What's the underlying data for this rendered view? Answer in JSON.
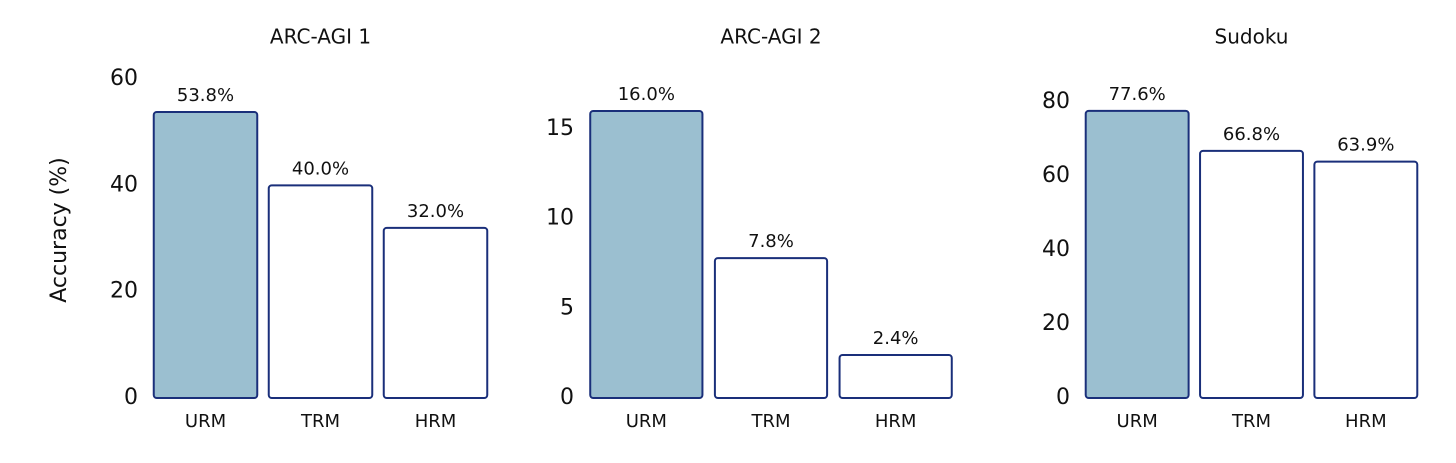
{
  "chart_data": [
    {
      "type": "bar",
      "title": "ARC-AGI 1",
      "ylabel": "Accuracy (%)",
      "categories": [
        "URM",
        "TRM",
        "HRM"
      ],
      "values": [
        53.8,
        40.0,
        32.0
      ],
      "value_labels": [
        "53.8%",
        "40.0%",
        "32.0%"
      ],
      "colors": [
        "#9bbfd0",
        "#ffffff",
        "#ffffff"
      ],
      "edgecolor": "#1a2f7a",
      "ylim": [
        0,
        60
      ],
      "yticks": [
        0,
        20,
        40,
        60
      ]
    },
    {
      "type": "bar",
      "title": "ARC-AGI 2",
      "categories": [
        "URM",
        "TRM",
        "HRM"
      ],
      "values": [
        16.0,
        7.8,
        2.4
      ],
      "value_labels": [
        "16.0%",
        "7.8%",
        "2.4%"
      ],
      "colors": [
        "#9bbfd0",
        "#ffffff",
        "#ffffff"
      ],
      "edgecolor": "#1a2f7a",
      "ylim": [
        0,
        16
      ],
      "yticks": [
        0,
        5,
        10,
        15
      ]
    },
    {
      "type": "bar",
      "title": "Sudoku",
      "categories": [
        "URM",
        "TRM",
        "HRM"
      ],
      "values": [
        77.6,
        66.8,
        63.9
      ],
      "value_labels": [
        "77.6%",
        "66.8%",
        "63.9%"
      ],
      "colors": [
        "#9bbfd0",
        "#ffffff",
        "#ffffff"
      ],
      "edgecolor": "#1a2f7a",
      "ylim": [
        0,
        80
      ],
      "yticks": [
        0,
        20,
        40,
        60,
        80
      ]
    }
  ]
}
